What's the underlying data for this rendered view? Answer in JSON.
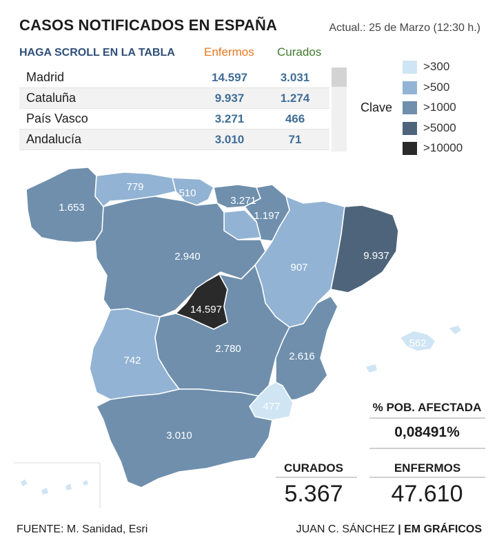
{
  "header": {
    "title": "CASOS NOTIFICADOS EN ESPAÑA",
    "updated": "Actual.: 25 de Marzo (12:30 h.)"
  },
  "table": {
    "scroll_hint": "HAGA SCROLL EN LA TABLA",
    "col_enfermos": "Enfermos",
    "col_curados": "Curados",
    "rows": [
      {
        "name": "Madrid",
        "enfermos": "14.597",
        "curados": "3.031"
      },
      {
        "name": "Cataluña",
        "enfermos": "9.937",
        "curados": "1.274"
      },
      {
        "name": "País Vasco",
        "enfermos": "3.271",
        "curados": "466"
      },
      {
        "name": "Andalucía",
        "enfermos": "3.010",
        "curados": "71"
      }
    ]
  },
  "legend": {
    "title": "Clave",
    "items": [
      {
        "label": ">300",
        "color": "#cfe5f3"
      },
      {
        "label": ">500",
        "color": "#92b3d3"
      },
      {
        "label": ">1000",
        "color": "#6f8fad"
      },
      {
        "label": ">5000",
        "color": "#4e647b"
      },
      {
        "label": ">10000",
        "color": "#2a2a2a"
      }
    ]
  },
  "chart_data": {
    "type": "choropleth",
    "title": "CASOS NOTIFICADOS EN ESPAÑA",
    "regions": [
      {
        "label": "1.653",
        "value": 1653
      },
      {
        "label": "779",
        "value": 779
      },
      {
        "label": "510",
        "value": 510
      },
      {
        "label": "3.271",
        "value": 3271
      },
      {
        "label": "1.197",
        "value": 1197
      },
      {
        "label": "2.940",
        "value": 2940
      },
      {
        "label": "907",
        "value": 907
      },
      {
        "label": "9.937",
        "value": 9937
      },
      {
        "label": "14.597",
        "value": 14597
      },
      {
        "label": "742",
        "value": 742
      },
      {
        "label": "2.780",
        "value": 2780
      },
      {
        "label": "2.616",
        "value": 2616
      },
      {
        "label": "562",
        "value": 562
      },
      {
        "label": "477",
        "value": 477
      },
      {
        "label": "3.010",
        "value": 3010
      }
    ]
  },
  "stats": {
    "pct_label": "% POB. AFECTADA",
    "pct_value": "0,08491%",
    "curados_label": "CURADOS",
    "curados_value": "5.367",
    "enfermos_label": "ENFERMOS",
    "enfermos_value": "47.610"
  },
  "footer": {
    "source": "FUENTE: M. Sanidad, Esri",
    "author": "JUAN C. SÁNCHEZ",
    "brand": "| EM GRÁFICOS"
  }
}
